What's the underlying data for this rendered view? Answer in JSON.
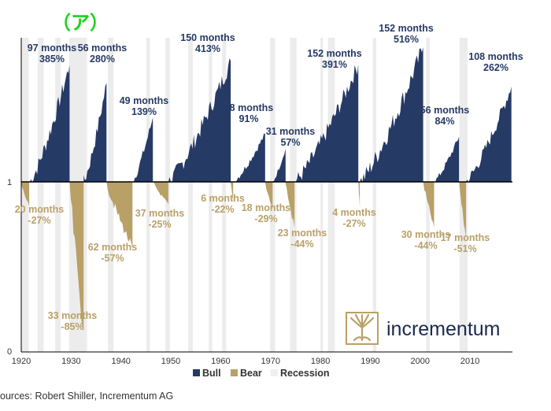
{
  "annotation": "（ア）",
  "source": "ources: Robert Shiller, Incrementum AG",
  "logo_text": "incrementum",
  "colors": {
    "bull": "#263a66",
    "bear": "#b9a067",
    "recession": "#e6e6e6",
    "annotation": "#1fd11f",
    "axis": "#000000"
  },
  "chart_data": {
    "type": "area",
    "baseline_value": 1,
    "ylim": [
      0,
      1
    ],
    "y_ticks": [
      "1",
      "0"
    ],
    "x_ticks": [
      1920,
      1930,
      1940,
      1950,
      1960,
      1970,
      1980,
      1990,
      2000,
      2010
    ],
    "xlim": [
      1920,
      2018.5
    ],
    "legend": [
      "Bull",
      "Bear",
      "Recession"
    ],
    "legend_position": "bottom",
    "recessions": [
      [
        1920.0,
        1921.5
      ],
      [
        1923.3,
        1924.5
      ],
      [
        1926.8,
        1927.9
      ],
      [
        1929.6,
        1933.2
      ],
      [
        1937.4,
        1938.5
      ],
      [
        1945.1,
        1945.8
      ],
      [
        1948.9,
        1949.8
      ],
      [
        1953.5,
        1954.4
      ],
      [
        1957.6,
        1958.3
      ],
      [
        1960.3,
        1961.1
      ],
      [
        1969.9,
        1970.9
      ],
      [
        1973.9,
        1975.2
      ],
      [
        1980.0,
        1980.5
      ],
      [
        1981.5,
        1982.9
      ],
      [
        1990.5,
        1991.2
      ],
      [
        2001.2,
        2001.9
      ],
      [
        2007.9,
        2009.5
      ]
    ],
    "bull_markets": [
      {
        "label": "97 months\n385%",
        "start": 1921.7,
        "end": 1929.7,
        "months": 97,
        "gain_pct": 385
      },
      {
        "label": "56 months\n280%",
        "start": 1932.5,
        "end": 1937.1,
        "months": 56,
        "gain_pct": 280
      },
      {
        "label": "49 months\n139%",
        "start": 1942.3,
        "end": 1946.4,
        "months": 49,
        "gain_pct": 139
      },
      {
        "label": "150 months\n413%",
        "start": 1949.5,
        "end": 1962.0,
        "months": 150,
        "gain_pct": 413
      },
      {
        "label": "78 months\n91%",
        "start": 1962.5,
        "end": 1968.9,
        "months": 78,
        "gain_pct": 91
      },
      {
        "label": "31 months\n57%",
        "start": 1970.4,
        "end": 1973.0,
        "months": 31,
        "gain_pct": 57
      },
      {
        "label": "152 months\n391%",
        "start": 1974.8,
        "end": 1987.6,
        "months": 152,
        "gain_pct": 391
      },
      {
        "label": "152 months\n516%",
        "start": 1987.9,
        "end": 2000.6,
        "months": 152,
        "gain_pct": 516
      },
      {
        "label": "56 months\n84%",
        "start": 2002.8,
        "end": 2007.8,
        "months": 56,
        "gain_pct": 84
      },
      {
        "label": "108 months\n262%",
        "start": 2009.2,
        "end": 2018.3,
        "months": 108,
        "gain_pct": 262
      }
    ],
    "bear_markets": [
      {
        "label": "20 months\n-27%",
        "start": 1919.9,
        "end": 1921.6,
        "months": 20,
        "loss_pct": -27
      },
      {
        "label": "33 months\n-85%",
        "start": 1929.7,
        "end": 1932.5,
        "months": 33,
        "loss_pct": -85
      },
      {
        "label": "62 months\n-57%",
        "start": 1937.1,
        "end": 1942.3,
        "months": 62,
        "loss_pct": -57
      },
      {
        "label": "37 months\n-25%",
        "start": 1946.4,
        "end": 1949.5,
        "months": 37,
        "loss_pct": -25
      },
      {
        "label": "6 months\n-22%",
        "start": 1962.0,
        "end": 1962.5,
        "months": 6,
        "loss_pct": -22
      },
      {
        "label": "18 months\n-29%",
        "start": 1968.9,
        "end": 1970.4,
        "months": 18,
        "loss_pct": -29
      },
      {
        "label": "23 months\n-44%",
        "start": 1973.0,
        "end": 1974.8,
        "months": 23,
        "loss_pct": -44
      },
      {
        "label": "4 months\n-27%",
        "start": 1987.6,
        "end": 1987.9,
        "months": 4,
        "loss_pct": -27
      },
      {
        "label": "30 months\n-44%",
        "start": 2000.6,
        "end": 2002.8,
        "months": 30,
        "loss_pct": -44
      },
      {
        "label": "17 months\n-51%",
        "start": 2007.8,
        "end": 2009.2,
        "months": 17,
        "loss_pct": -51
      }
    ]
  }
}
